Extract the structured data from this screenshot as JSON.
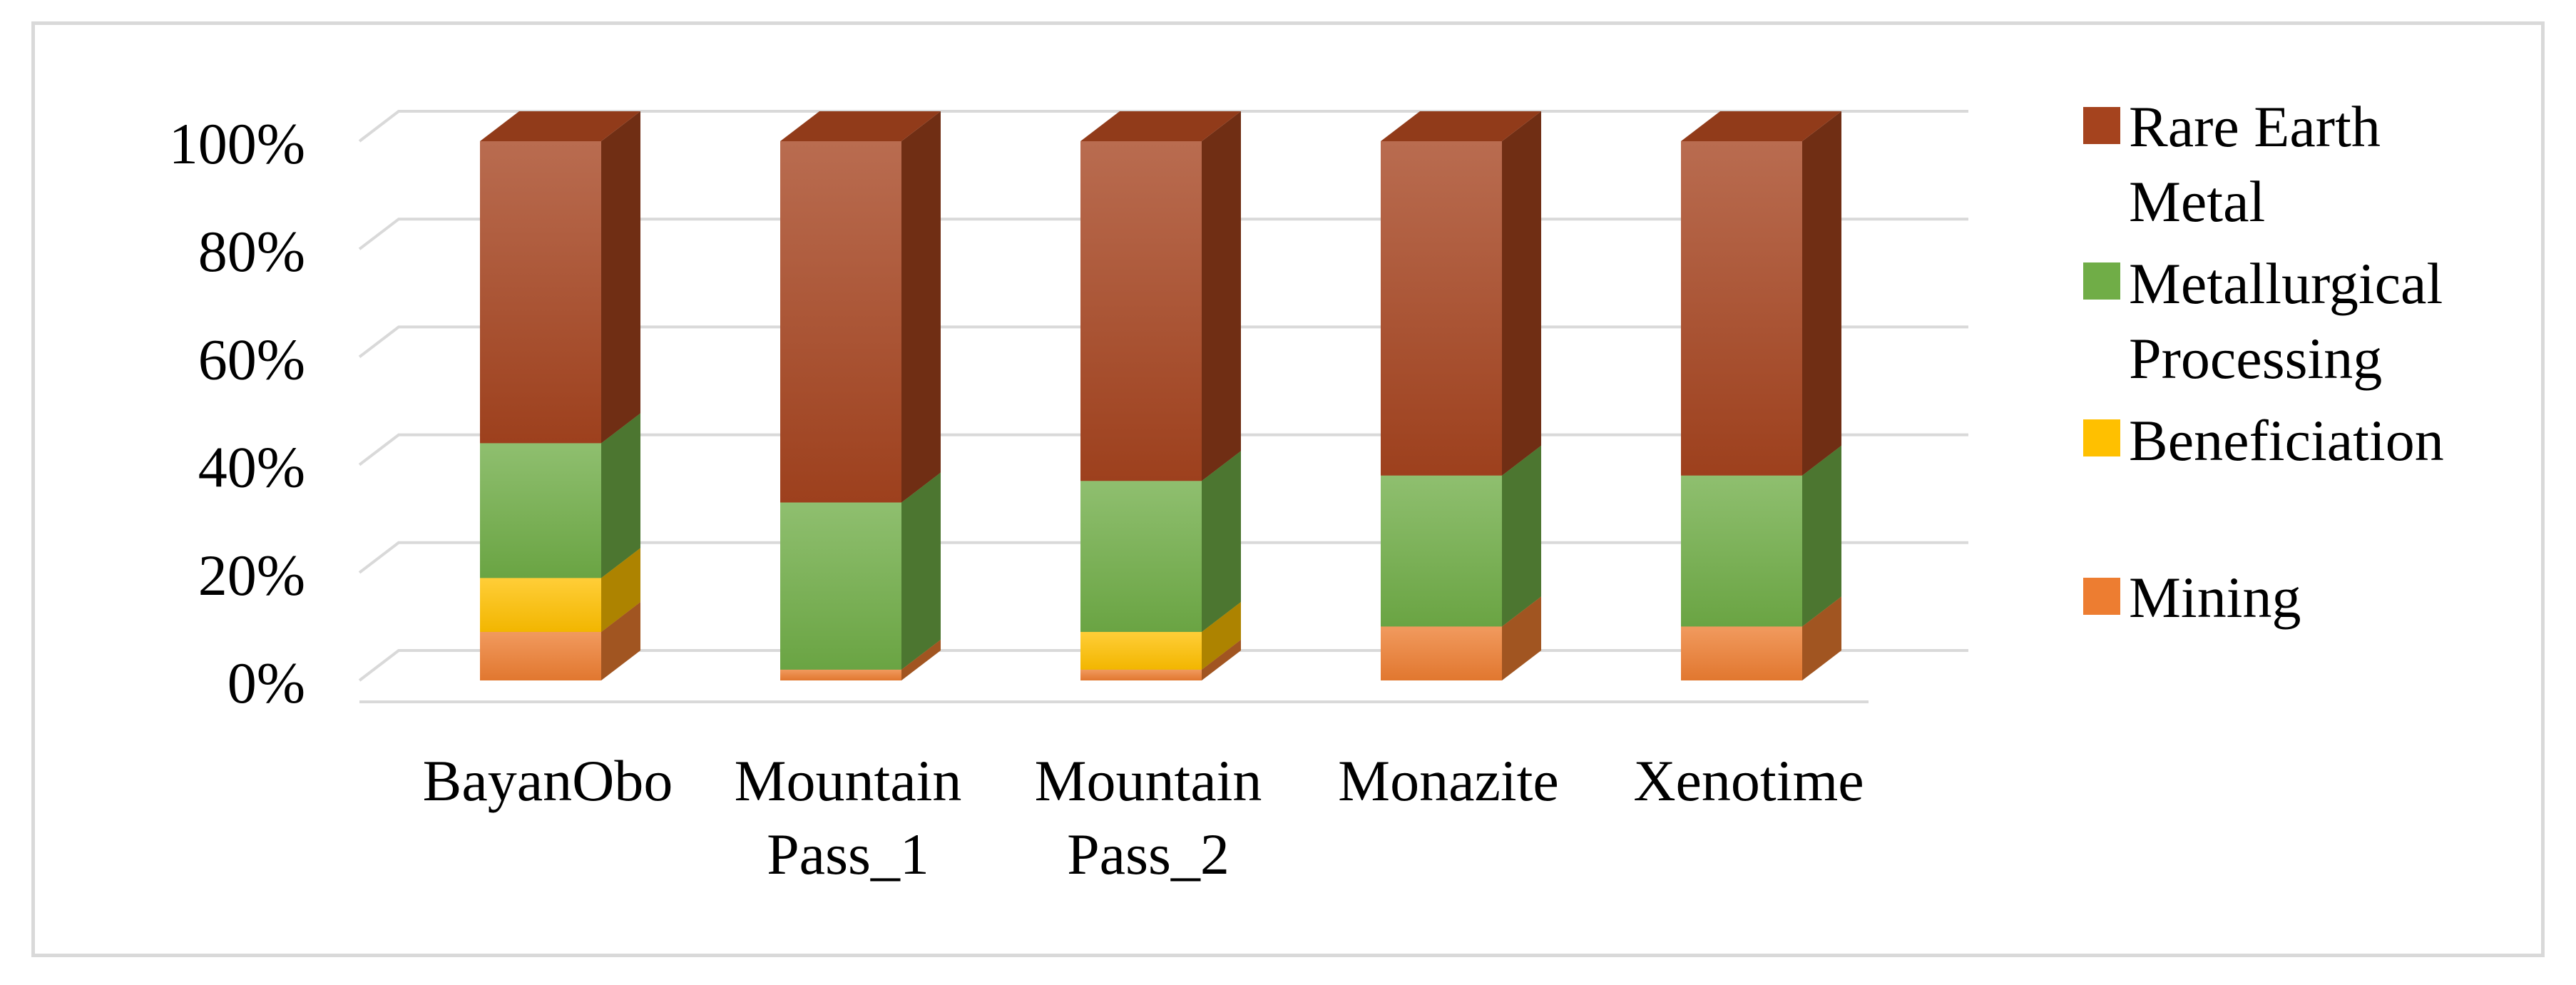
{
  "chart_data": {
    "type": "bar",
    "stacked": true,
    "percent": true,
    "style": "3d",
    "categories": [
      "BayanObo",
      "Mountain Pass_1",
      "Mountain Pass_2",
      "Monazite",
      "Xenotime"
    ],
    "category_lines": [
      [
        "BayanObo"
      ],
      [
        "Mountain",
        "Pass_1"
      ],
      [
        "Mountain",
        "Pass_2"
      ],
      [
        "Monazite"
      ],
      [
        "Xenotime"
      ]
    ],
    "series": [
      {
        "name": "Mining",
        "values": [
          9,
          2,
          2,
          10,
          10
        ],
        "color": "#ed7d31"
      },
      {
        "name": "Beneficiation",
        "values": [
          10,
          0,
          7,
          0,
          0
        ],
        "color": "#ffc000"
      },
      {
        "name": "Metallurgical Processing",
        "values": [
          25,
          31,
          28,
          28,
          28
        ],
        "color": "#70ad47"
      },
      {
        "name": "Rare Earth Metal",
        "values": [
          56,
          67,
          63,
          62,
          62
        ],
        "color": "#a5431e"
      }
    ],
    "yaxis": {
      "min": 0,
      "max": 100,
      "ticks": [
        0,
        20,
        40,
        60,
        80,
        100
      ],
      "tick_labels": [
        "0%",
        "20%",
        "40%",
        "60%",
        "80%",
        "100%"
      ]
    },
    "grid": true,
    "legend": {
      "position": "right",
      "items": [
        {
          "series": "Rare Earth Metal",
          "lines": [
            "Rare Earth",
            "Metal"
          ]
        },
        {
          "series": "Metallurgical Processing",
          "lines": [
            "Metallurgical",
            "Processing"
          ]
        },
        {
          "series": "Beneficiation",
          "lines": [
            "Beneficiation"
          ]
        },
        {
          "series": "Mining",
          "lines": [
            "Mining"
          ]
        }
      ]
    },
    "title": "",
    "xlabel": "",
    "ylabel": ""
  }
}
